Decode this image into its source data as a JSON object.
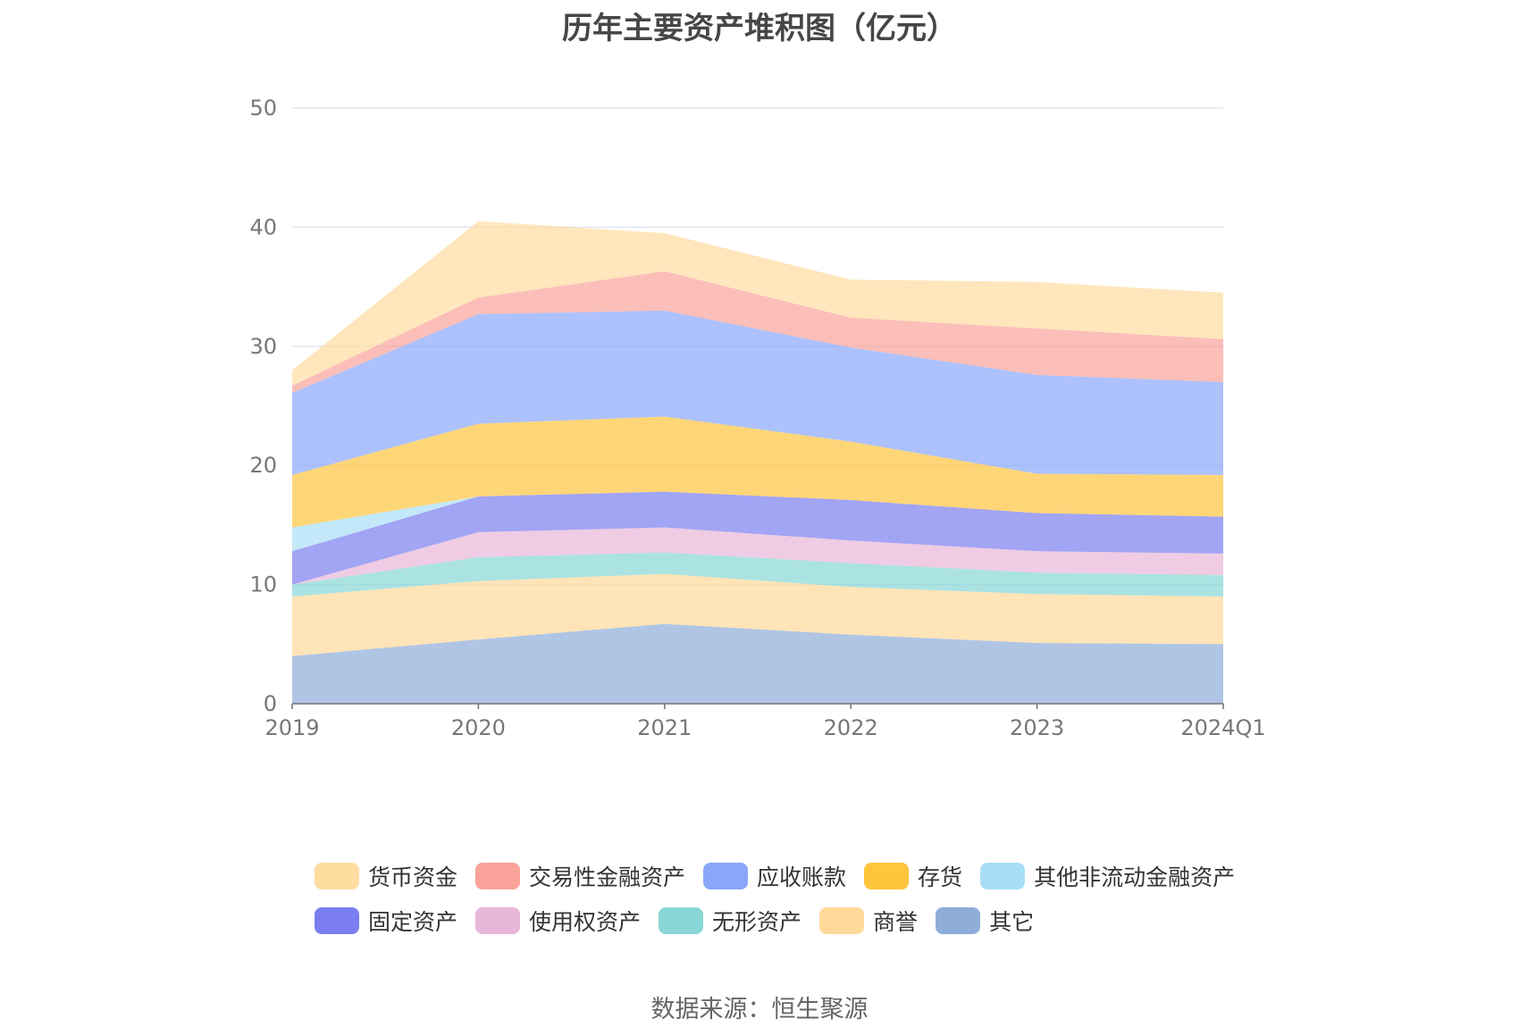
{
  "chart_data": {
    "type": "area",
    "stacked": true,
    "title": "历年主要资产堆积图（亿元）",
    "categories": [
      "2019",
      "2020",
      "2021",
      "2022",
      "2023",
      "2024Q1"
    ],
    "ylim": [
      0,
      50
    ],
    "yticks": [
      0,
      10,
      20,
      30,
      40,
      50
    ],
    "grid": true,
    "legend_position": "bottom",
    "series": [
      {
        "name": "其它",
        "color": "#8fadd9",
        "values": [
          4.0,
          5.4,
          6.7,
          5.8,
          5.1,
          5.0
        ]
      },
      {
        "name": "商誉",
        "color": "#ffd99a",
        "values": [
          5.0,
          4.9,
          4.2,
          4.0,
          4.1,
          4.0
        ]
      },
      {
        "name": "无形资产",
        "color": "#88d6d6",
        "values": [
          1.0,
          2.0,
          1.8,
          2.0,
          1.8,
          1.8
        ]
      },
      {
        "name": "使用权资产",
        "color": "#e8b6d8",
        "values": [
          0.0,
          2.1,
          2.1,
          1.9,
          1.8,
          1.8
        ]
      },
      {
        "name": "固定资产",
        "color": "#7a7ef0",
        "values": [
          2.8,
          3.0,
          3.0,
          3.4,
          3.2,
          3.1
        ]
      },
      {
        "name": "其他非流动金融资产",
        "color": "#a9def7",
        "values": [
          2.0,
          0.0,
          0.0,
          0.0,
          0.0,
          0.0
        ]
      },
      {
        "name": "存货",
        "color": "#ffc53d",
        "values": [
          4.4,
          6.1,
          6.3,
          4.9,
          3.3,
          3.5
        ]
      },
      {
        "name": "应收账款",
        "color": "#8aa6fb",
        "values": [
          6.9,
          9.2,
          8.9,
          7.9,
          8.3,
          7.8
        ]
      },
      {
        "name": "交易性金融资产",
        "color": "#f9a29a",
        "values": [
          0.6,
          1.4,
          3.3,
          2.5,
          3.9,
          3.6
        ]
      },
      {
        "name": "货币资金",
        "color": "#ffdca0",
        "values": [
          1.3,
          6.4,
          3.2,
          3.2,
          3.9,
          3.9
        ]
      }
    ],
    "legend_order": [
      "货币资金",
      "交易性金融资产",
      "应收账款",
      "存货",
      "其他非流动金融资产",
      "固定资产",
      "使用权资产",
      "无形资产",
      "商誉",
      "其它"
    ]
  },
  "source": "数据来源：恒生聚源"
}
